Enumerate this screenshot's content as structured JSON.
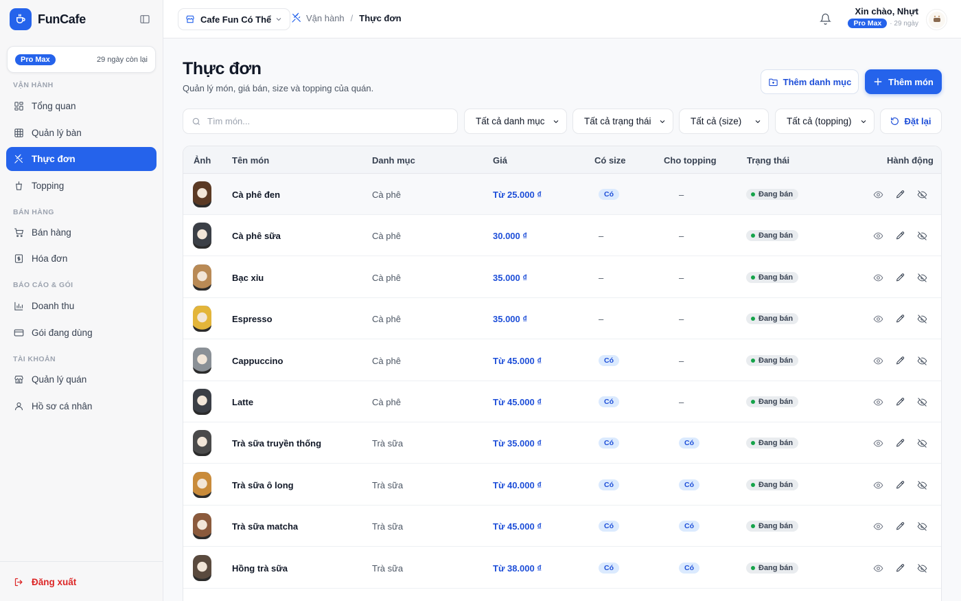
{
  "brand": {
    "name": "FunCafe",
    "accent": "#2563eb"
  },
  "plan": {
    "badge": "Pro Max",
    "days_left": "29 ngày còn lại"
  },
  "nav": {
    "sections": [
      {
        "label": "VẬN HÀNH",
        "items": [
          {
            "label": "Tổng quan",
            "icon": "dashboard-icon"
          },
          {
            "label": "Quản lý bàn",
            "icon": "grid-icon"
          },
          {
            "label": "Thực đơn",
            "icon": "utensils-icon",
            "active": true
          },
          {
            "label": "Topping",
            "icon": "cup-icon"
          }
        ]
      },
      {
        "label": "BÁN HÀNG",
        "items": [
          {
            "label": "Bán hàng",
            "icon": "cart-icon"
          },
          {
            "label": "Hóa đơn",
            "icon": "receipt-icon"
          }
        ]
      },
      {
        "label": "BÁO CÁO & GÓI",
        "items": [
          {
            "label": "Doanh thu",
            "icon": "bar-chart-icon"
          },
          {
            "label": "Gói đang dùng",
            "icon": "credit-card-icon"
          }
        ]
      },
      {
        "label": "TÀI KHOẢN",
        "items": [
          {
            "label": "Quản lý quán",
            "icon": "store-icon"
          },
          {
            "label": "Hồ sơ cá nhân",
            "icon": "user-icon"
          }
        ]
      }
    ],
    "logout": "Đăng xuất"
  },
  "topbar": {
    "store": "Cafe Fun Có Thể",
    "breadcrumb": [
      "Vận hành",
      "Thực đơn"
    ],
    "greeting": "Xin chào, Nhựt",
    "plan_badge": "Pro Max",
    "plan_days": "· 29 ngày"
  },
  "page": {
    "title": "Thực đơn",
    "subtitle": "Quản lý món, giá bán, size và topping của quán.",
    "add_category": "Thêm danh mục",
    "add_item": "Thêm món"
  },
  "filters": {
    "search_placeholder": "Tìm món...",
    "category": "Tất cả danh mục",
    "status": "Tất cả trạng thái",
    "size": "Tất cả (size)",
    "topping": "Tất cả (topping)",
    "reset": "Đặt lại"
  },
  "table": {
    "columns": [
      "Ảnh",
      "Tên món",
      "Danh mục",
      "Giá",
      "Có size",
      "Cho topping",
      "Trạng thái",
      "Hành động"
    ],
    "rows": [
      {
        "name": "Cà phê đen",
        "category": "Cà phê",
        "price": "Từ 25.000 ₫",
        "size": "Có",
        "topping": "–",
        "status": "Đang bán",
        "thumb": "#5b3a24"
      },
      {
        "name": "Cà phê sữa",
        "category": "Cà phê",
        "price": "30.000 ₫",
        "size": "–",
        "topping": "–",
        "status": "Đang bán",
        "thumb": "#3b3f46"
      },
      {
        "name": "Bạc xỉu",
        "category": "Cà phê",
        "price": "35.000 ₫",
        "size": "–",
        "topping": "–",
        "status": "Đang bán",
        "thumb": "#b98a55"
      },
      {
        "name": "Espresso",
        "category": "Cà phê",
        "price": "35.000 ₫",
        "size": "–",
        "topping": "–",
        "status": "Đang bán",
        "thumb": "#e3b53a"
      },
      {
        "name": "Cappuccino",
        "category": "Cà phê",
        "price": "Từ 45.000 ₫",
        "size": "Có",
        "topping": "–",
        "status": "Đang bán",
        "thumb": "#8a9096"
      },
      {
        "name": "Latte",
        "category": "Cà phê",
        "price": "Từ 45.000 ₫",
        "size": "Có",
        "topping": "–",
        "status": "Đang bán",
        "thumb": "#3b3f46"
      },
      {
        "name": "Trà sữa truyền thống",
        "category": "Trà sữa",
        "price": "Từ 35.000 ₫",
        "size": "Có",
        "topping": "Có",
        "status": "Đang bán",
        "thumb": "#4a4a4a"
      },
      {
        "name": "Trà sữa ô long",
        "category": "Trà sữa",
        "price": "Từ 40.000 ₫",
        "size": "Có",
        "topping": "Có",
        "status": "Đang bán",
        "thumb": "#c98b3a"
      },
      {
        "name": "Trà sữa matcha",
        "category": "Trà sữa",
        "price": "Từ 45.000 ₫",
        "size": "Có",
        "topping": "Có",
        "status": "Đang bán",
        "thumb": "#8b5a3c"
      },
      {
        "name": "Hồng trà sữa",
        "category": "Trà sữa",
        "price": "Từ 38.000 ₫",
        "size": "Có",
        "topping": "Có",
        "status": "Đang bán",
        "thumb": "#5a4a3e"
      }
    ]
  }
}
